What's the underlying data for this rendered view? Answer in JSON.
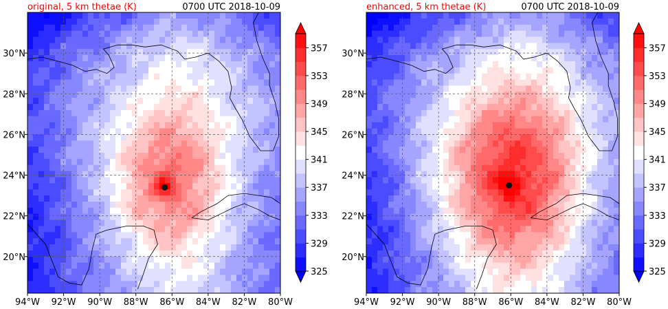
{
  "panels": [
    {
      "title_left": "original, 5 km thetae (K)",
      "title_right": "0700 UTC 2018-10-09",
      "center_lon": -86.4,
      "center_lat": 23.4,
      "core_strength": 0.75,
      "core_radius_deg": 2.4
    },
    {
      "title_left": "enhanced, 5 km thetae (K)",
      "title_right": "0700 UTC 2018-10-09",
      "center_lon": -86.1,
      "center_lat": 23.5,
      "core_strength": 1.0,
      "core_radius_deg": 3.0
    }
  ],
  "chart_data": {
    "type": "heatmap",
    "xlim": [
      -94,
      -80
    ],
    "ylim": [
      18.2,
      32.0
    ],
    "x_ticks": [
      "94°W",
      "92°W",
      "90°W",
      "88°W",
      "86°W",
      "84°W",
      "82°W",
      "80°W"
    ],
    "x_tick_values": [
      -94,
      -92,
      -90,
      -88,
      -86,
      -84,
      -82,
      -80
    ],
    "y_ticks": [
      "20°N",
      "22°N",
      "24°N",
      "26°N",
      "28°N",
      "30°N"
    ],
    "y_tick_values": [
      20,
      22,
      24,
      26,
      28,
      30
    ],
    "grid": true,
    "colorbar": {
      "min": 325,
      "max": 359,
      "tick_labels": [
        "325",
        "329",
        "333",
        "337",
        "341",
        "345",
        "349",
        "353",
        "357"
      ],
      "tick_values": [
        325,
        329,
        333,
        337,
        341,
        345,
        349,
        353,
        357
      ],
      "extend": "both"
    },
    "colors": {
      "cold": "#0000ff",
      "neutral": "#ffffff",
      "warm": "#ff0000"
    }
  }
}
